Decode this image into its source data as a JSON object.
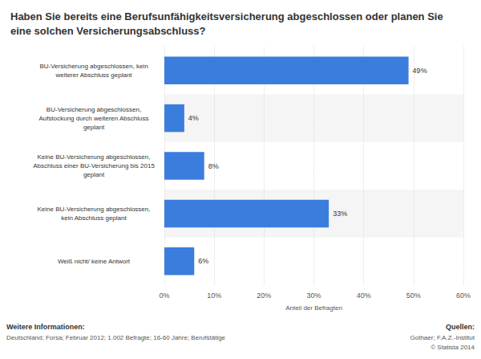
{
  "chart_data": {
    "type": "bar",
    "orientation": "horizontal",
    "title": "Haben Sie bereits eine Berufsunfähigkeitsversicherung abgeschlossen oder planen Sie\neine solchen Versicherungsabschluss?",
    "categories": [
      "BU-Versicherung abgeschlossen, kein\nweiterer Abschluss geplant",
      "BU-Versicherung abgeschlossen,\nAufstockung durch weiteren Abschluss\ngeplant",
      "Keine BU-Versicherung abgeschlossen,\nAbschluss einer BU-Versicherung bis 2015\ngeplant",
      "Keine BU-Versicherung abgeschlossen,\nkein Abschluss geplant",
      "Weiß nicht/ keine Antwort"
    ],
    "values": [
      49,
      4,
      8,
      33,
      6
    ],
    "value_labels": [
      "49%",
      "4%",
      "8%",
      "33%",
      "6%"
    ],
    "data_labels": true,
    "color": "#3b7ddd",
    "xlabel": "Anteil der Befragten",
    "xlim": [
      0,
      60
    ],
    "xticks": [
      {
        "value": 0,
        "label": "0%"
      },
      {
        "value": 10,
        "label": "10%"
      },
      {
        "value": 20,
        "label": "20%"
      },
      {
        "value": 30,
        "label": "30%"
      },
      {
        "value": 40,
        "label": "40%"
      },
      {
        "value": 50,
        "label": "50%"
      },
      {
        "value": 60,
        "label": "60%"
      }
    ],
    "grid": true,
    "annotations": [
      "Weitere Informationen:",
      "Deutschland; Forsa; Februar 2012; 1.002 Befragte; 16-60 Jahre; Berufstätige",
      "Quellen:",
      "Gothaer; F.A.Z.-Institut",
      "© Statista 2014"
    ]
  }
}
